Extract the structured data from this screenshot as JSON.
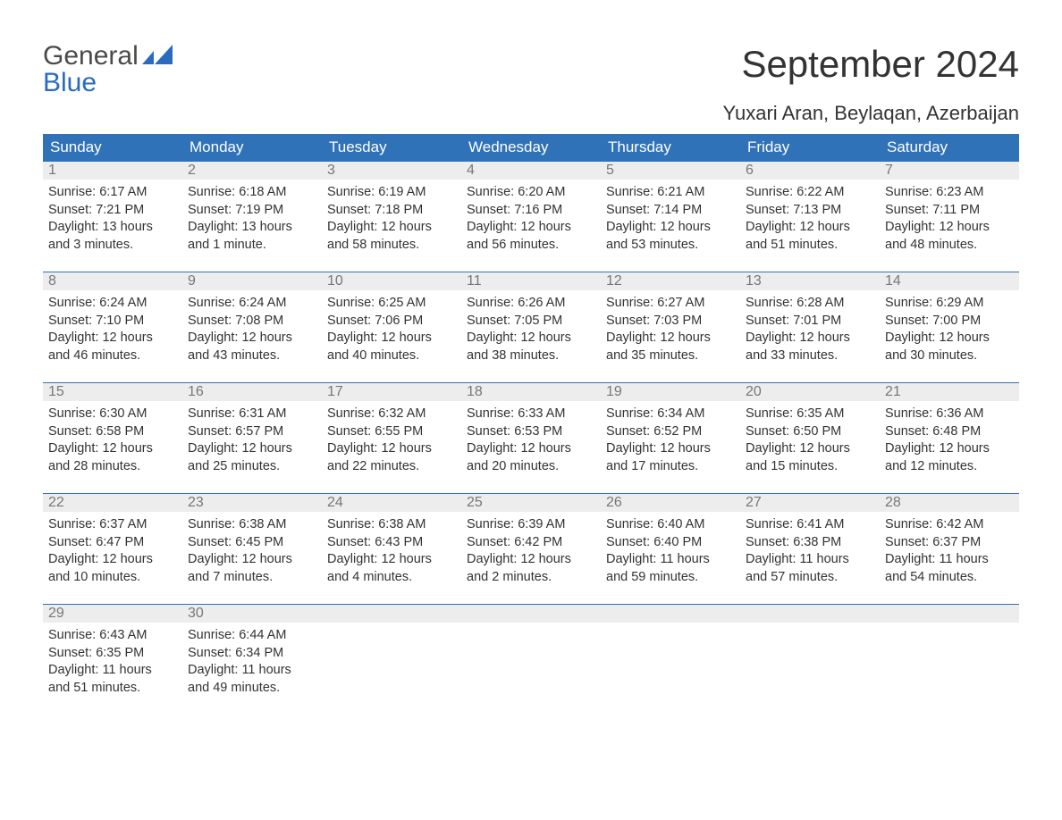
{
  "logo": {
    "word1": "General",
    "word2": "Blue",
    "text_color": "#4a4a4a",
    "accent_color": "#2a6bbf"
  },
  "title": "September 2024",
  "location": "Yuxari Aran, Beylaqan, Azerbaijan",
  "colors": {
    "header_bg": "#2f72b8",
    "header_text": "#ffffff",
    "daybar_bg": "#ededed",
    "daybar_text": "#777777",
    "daybar_border": "#2f72b8",
    "body_text": "#333333",
    "page_bg": "#ffffff"
  },
  "typography": {
    "title_fontsize": 42,
    "location_fontsize": 22,
    "weekday_fontsize": 17,
    "daynum_fontsize": 16,
    "body_fontsize": 14.5
  },
  "weekdays": [
    "Sunday",
    "Monday",
    "Tuesday",
    "Wednesday",
    "Thursday",
    "Friday",
    "Saturday"
  ],
  "weeks": [
    [
      {
        "day": "1",
        "sunrise": "Sunrise: 6:17 AM",
        "sunset": "Sunset: 7:21 PM",
        "daylight1": "Daylight: 13 hours",
        "daylight2": "and 3 minutes."
      },
      {
        "day": "2",
        "sunrise": "Sunrise: 6:18 AM",
        "sunset": "Sunset: 7:19 PM",
        "daylight1": "Daylight: 13 hours",
        "daylight2": "and 1 minute."
      },
      {
        "day": "3",
        "sunrise": "Sunrise: 6:19 AM",
        "sunset": "Sunset: 7:18 PM",
        "daylight1": "Daylight: 12 hours",
        "daylight2": "and 58 minutes."
      },
      {
        "day": "4",
        "sunrise": "Sunrise: 6:20 AM",
        "sunset": "Sunset: 7:16 PM",
        "daylight1": "Daylight: 12 hours",
        "daylight2": "and 56 minutes."
      },
      {
        "day": "5",
        "sunrise": "Sunrise: 6:21 AM",
        "sunset": "Sunset: 7:14 PM",
        "daylight1": "Daylight: 12 hours",
        "daylight2": "and 53 minutes."
      },
      {
        "day": "6",
        "sunrise": "Sunrise: 6:22 AM",
        "sunset": "Sunset: 7:13 PM",
        "daylight1": "Daylight: 12 hours",
        "daylight2": "and 51 minutes."
      },
      {
        "day": "7",
        "sunrise": "Sunrise: 6:23 AM",
        "sunset": "Sunset: 7:11 PM",
        "daylight1": "Daylight: 12 hours",
        "daylight2": "and 48 minutes."
      }
    ],
    [
      {
        "day": "8",
        "sunrise": "Sunrise: 6:24 AM",
        "sunset": "Sunset: 7:10 PM",
        "daylight1": "Daylight: 12 hours",
        "daylight2": "and 46 minutes."
      },
      {
        "day": "9",
        "sunrise": "Sunrise: 6:24 AM",
        "sunset": "Sunset: 7:08 PM",
        "daylight1": "Daylight: 12 hours",
        "daylight2": "and 43 minutes."
      },
      {
        "day": "10",
        "sunrise": "Sunrise: 6:25 AM",
        "sunset": "Sunset: 7:06 PM",
        "daylight1": "Daylight: 12 hours",
        "daylight2": "and 40 minutes."
      },
      {
        "day": "11",
        "sunrise": "Sunrise: 6:26 AM",
        "sunset": "Sunset: 7:05 PM",
        "daylight1": "Daylight: 12 hours",
        "daylight2": "and 38 minutes."
      },
      {
        "day": "12",
        "sunrise": "Sunrise: 6:27 AM",
        "sunset": "Sunset: 7:03 PM",
        "daylight1": "Daylight: 12 hours",
        "daylight2": "and 35 minutes."
      },
      {
        "day": "13",
        "sunrise": "Sunrise: 6:28 AM",
        "sunset": "Sunset: 7:01 PM",
        "daylight1": "Daylight: 12 hours",
        "daylight2": "and 33 minutes."
      },
      {
        "day": "14",
        "sunrise": "Sunrise: 6:29 AM",
        "sunset": "Sunset: 7:00 PM",
        "daylight1": "Daylight: 12 hours",
        "daylight2": "and 30 minutes."
      }
    ],
    [
      {
        "day": "15",
        "sunrise": "Sunrise: 6:30 AM",
        "sunset": "Sunset: 6:58 PM",
        "daylight1": "Daylight: 12 hours",
        "daylight2": "and 28 minutes."
      },
      {
        "day": "16",
        "sunrise": "Sunrise: 6:31 AM",
        "sunset": "Sunset: 6:57 PM",
        "daylight1": "Daylight: 12 hours",
        "daylight2": "and 25 minutes."
      },
      {
        "day": "17",
        "sunrise": "Sunrise: 6:32 AM",
        "sunset": "Sunset: 6:55 PM",
        "daylight1": "Daylight: 12 hours",
        "daylight2": "and 22 minutes."
      },
      {
        "day": "18",
        "sunrise": "Sunrise: 6:33 AM",
        "sunset": "Sunset: 6:53 PM",
        "daylight1": "Daylight: 12 hours",
        "daylight2": "and 20 minutes."
      },
      {
        "day": "19",
        "sunrise": "Sunrise: 6:34 AM",
        "sunset": "Sunset: 6:52 PM",
        "daylight1": "Daylight: 12 hours",
        "daylight2": "and 17 minutes."
      },
      {
        "day": "20",
        "sunrise": "Sunrise: 6:35 AM",
        "sunset": "Sunset: 6:50 PM",
        "daylight1": "Daylight: 12 hours",
        "daylight2": "and 15 minutes."
      },
      {
        "day": "21",
        "sunrise": "Sunrise: 6:36 AM",
        "sunset": "Sunset: 6:48 PM",
        "daylight1": "Daylight: 12 hours",
        "daylight2": "and 12 minutes."
      }
    ],
    [
      {
        "day": "22",
        "sunrise": "Sunrise: 6:37 AM",
        "sunset": "Sunset: 6:47 PM",
        "daylight1": "Daylight: 12 hours",
        "daylight2": "and 10 minutes."
      },
      {
        "day": "23",
        "sunrise": "Sunrise: 6:38 AM",
        "sunset": "Sunset: 6:45 PM",
        "daylight1": "Daylight: 12 hours",
        "daylight2": "and 7 minutes."
      },
      {
        "day": "24",
        "sunrise": "Sunrise: 6:38 AM",
        "sunset": "Sunset: 6:43 PM",
        "daylight1": "Daylight: 12 hours",
        "daylight2": "and 4 minutes."
      },
      {
        "day": "25",
        "sunrise": "Sunrise: 6:39 AM",
        "sunset": "Sunset: 6:42 PM",
        "daylight1": "Daylight: 12 hours",
        "daylight2": "and 2 minutes."
      },
      {
        "day": "26",
        "sunrise": "Sunrise: 6:40 AM",
        "sunset": "Sunset: 6:40 PM",
        "daylight1": "Daylight: 11 hours",
        "daylight2": "and 59 minutes."
      },
      {
        "day": "27",
        "sunrise": "Sunrise: 6:41 AM",
        "sunset": "Sunset: 6:38 PM",
        "daylight1": "Daylight: 11 hours",
        "daylight2": "and 57 minutes."
      },
      {
        "day": "28",
        "sunrise": "Sunrise: 6:42 AM",
        "sunset": "Sunset: 6:37 PM",
        "daylight1": "Daylight: 11 hours",
        "daylight2": "and 54 minutes."
      }
    ],
    [
      {
        "day": "29",
        "sunrise": "Sunrise: 6:43 AM",
        "sunset": "Sunset: 6:35 PM",
        "daylight1": "Daylight: 11 hours",
        "daylight2": "and 51 minutes."
      },
      {
        "day": "30",
        "sunrise": "Sunrise: 6:44 AM",
        "sunset": "Sunset: 6:34 PM",
        "daylight1": "Daylight: 11 hours",
        "daylight2": "and 49 minutes."
      },
      {
        "empty": true
      },
      {
        "empty": true
      },
      {
        "empty": true
      },
      {
        "empty": true
      },
      {
        "empty": true
      }
    ]
  ]
}
